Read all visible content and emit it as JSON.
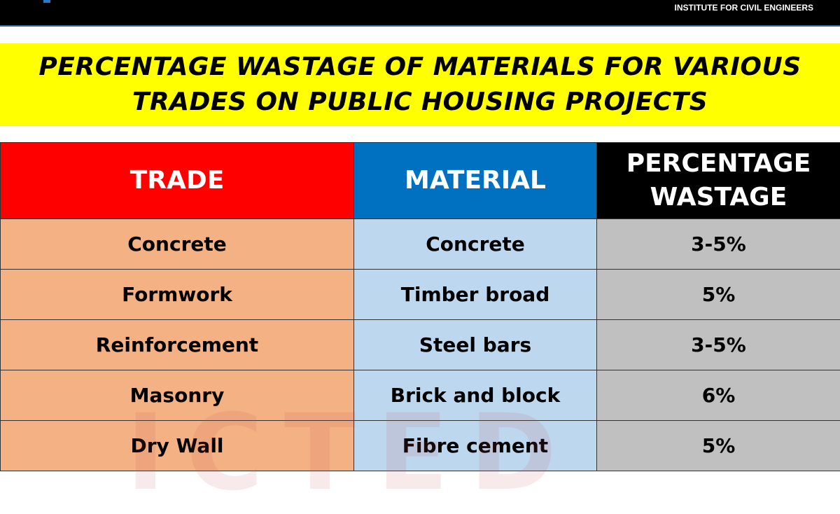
{
  "header": {
    "organization": "INSTITUTE FOR CIVIL ENGINEERS",
    "logo_color": "#2a78c8"
  },
  "banner": {
    "title_line1": "PERCENTAGE WASTAGE OF MATERIALS FOR VARIOUS",
    "title_line2": "TRADES ON PUBLIC HOUSING PROJECTS"
  },
  "table": {
    "columns": [
      "TRADE",
      "MATERIAL",
      "PERCENTAGE",
      "WASTAGE"
    ],
    "rows": [
      {
        "trade": "Concrete",
        "material": "Concrete",
        "wastage": "3-5%"
      },
      {
        "trade": "Formwork",
        "material": "Timber broad",
        "wastage": "5%"
      },
      {
        "trade": "Reinforcement",
        "material": "Steel bars",
        "wastage": "3-5%"
      },
      {
        "trade": "Masonry",
        "material": "Brick and block",
        "wastage": "6%"
      },
      {
        "trade": "Dry Wall",
        "material": "Fibre cement",
        "wastage": "5%"
      }
    ]
  },
  "watermark": "ICTED",
  "colors": {
    "trade_header": "#ff0000",
    "material_header": "#0070c0",
    "wastage_header": "#000000",
    "trade_cell": "#f4b183",
    "material_cell": "#bdd7ee",
    "wastage_cell": "#c0c0c0",
    "banner": "#ffff00"
  }
}
